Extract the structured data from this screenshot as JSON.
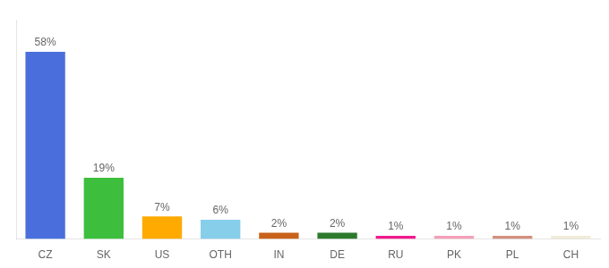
{
  "chart_data": {
    "type": "bar",
    "categories": [
      "CZ",
      "SK",
      "US",
      "OTH",
      "IN",
      "DE",
      "RU",
      "PK",
      "PL",
      "CH"
    ],
    "values": [
      58,
      19,
      7,
      6,
      2,
      2,
      1,
      1,
      1,
      1
    ],
    "value_labels": [
      "58%",
      "19%",
      "7%",
      "6%",
      "2%",
      "2%",
      "1%",
      "1%",
      "1%",
      "1%"
    ],
    "colors": [
      "#4a6fdc",
      "#3dbf3d",
      "#ffaa00",
      "#87ceeb",
      "#c8621a",
      "#2d7a2d",
      "#f0198c",
      "#f4a0b8",
      "#d49080",
      "#f0ecd8"
    ],
    "ylim": [
      0,
      68
    ],
    "data_labels": true,
    "tick_labels": "x",
    "grid": false
  }
}
